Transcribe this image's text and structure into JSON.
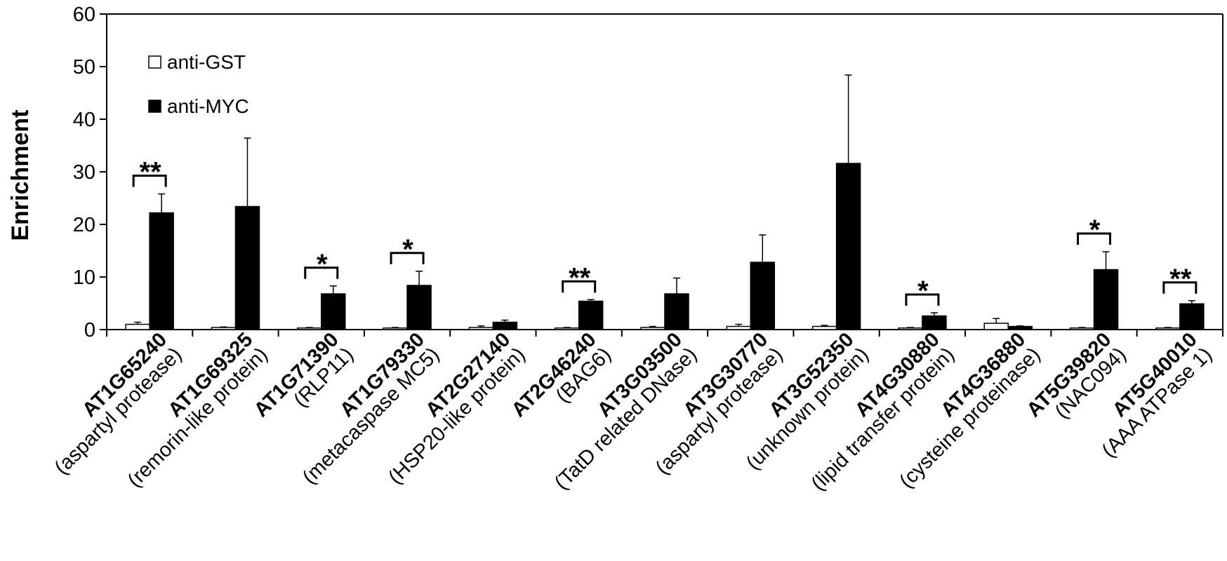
{
  "chart_data": {
    "type": "bar",
    "title": "",
    "xlabel": "",
    "ylabel": "Enrichment",
    "ylim": [
      0,
      60
    ],
    "yticks": [
      "0",
      "10",
      "20",
      "30",
      "40",
      "50",
      "60"
    ],
    "grid": false,
    "legend_position": "top-left",
    "legend": [
      {
        "label": "anti-GST",
        "color": "#ffffff"
      },
      {
        "label": "anti-MYC",
        "color": "#000000"
      }
    ],
    "categories": [
      {
        "gene": "AT1G65240",
        "desc": "(aspartyl protease)"
      },
      {
        "gene": "AT1G69325",
        "desc": "(remorin-like protein)"
      },
      {
        "gene": "AT1G71390",
        "desc": "(RLP11)"
      },
      {
        "gene": "AT1G79330",
        "desc": "(metacaspase MC5)"
      },
      {
        "gene": "AT2G27140",
        "desc": "(HSP20-like protein)"
      },
      {
        "gene": "AT2G46240",
        "desc": "(BAG6)"
      },
      {
        "gene": "AT3G03500",
        "desc": "(TatD related DNase)"
      },
      {
        "gene": "AT3G30770",
        "desc": "(aspartyl protease)"
      },
      {
        "gene": "AT3G52350",
        "desc": "(unknown protein)"
      },
      {
        "gene": "AT4G30880",
        "desc": "(lipid transfer protein)"
      },
      {
        "gene": "AT4G36880",
        "desc": "(cysteine proteinase)"
      },
      {
        "gene": "AT5G39820",
        "desc": "(NAC094)"
      },
      {
        "gene": "AT5G40010",
        "desc": "(AAA ATPase 1)"
      }
    ],
    "series": [
      {
        "name": "anti-GST",
        "color": "#ffffff",
        "values": [
          1.0,
          0.4,
          0.3,
          0.3,
          0.4,
          0.3,
          0.4,
          0.6,
          0.6,
          0.3,
          1.2,
          0.3,
          0.3
        ],
        "errors": [
          0.4,
          0.1,
          0.1,
          0.1,
          0.3,
          0.1,
          0.2,
          0.4,
          0.2,
          0.1,
          0.9,
          0.1,
          0.1
        ]
      },
      {
        "name": "anti-MYC",
        "color": "#000000",
        "values": [
          22.2,
          23.4,
          6.8,
          8.4,
          1.4,
          5.4,
          6.8,
          12.8,
          31.6,
          2.6,
          0.6,
          11.4,
          4.9
        ],
        "errors": [
          3.6,
          13.0,
          1.5,
          2.7,
          0.4,
          0.3,
          3.0,
          5.2,
          16.8,
          0.6,
          0.1,
          3.4,
          0.6
        ]
      }
    ],
    "significance": [
      "**",
      "",
      "*",
      "*",
      "",
      "**",
      "",
      "",
      "",
      "*",
      "",
      "*",
      "**"
    ]
  }
}
